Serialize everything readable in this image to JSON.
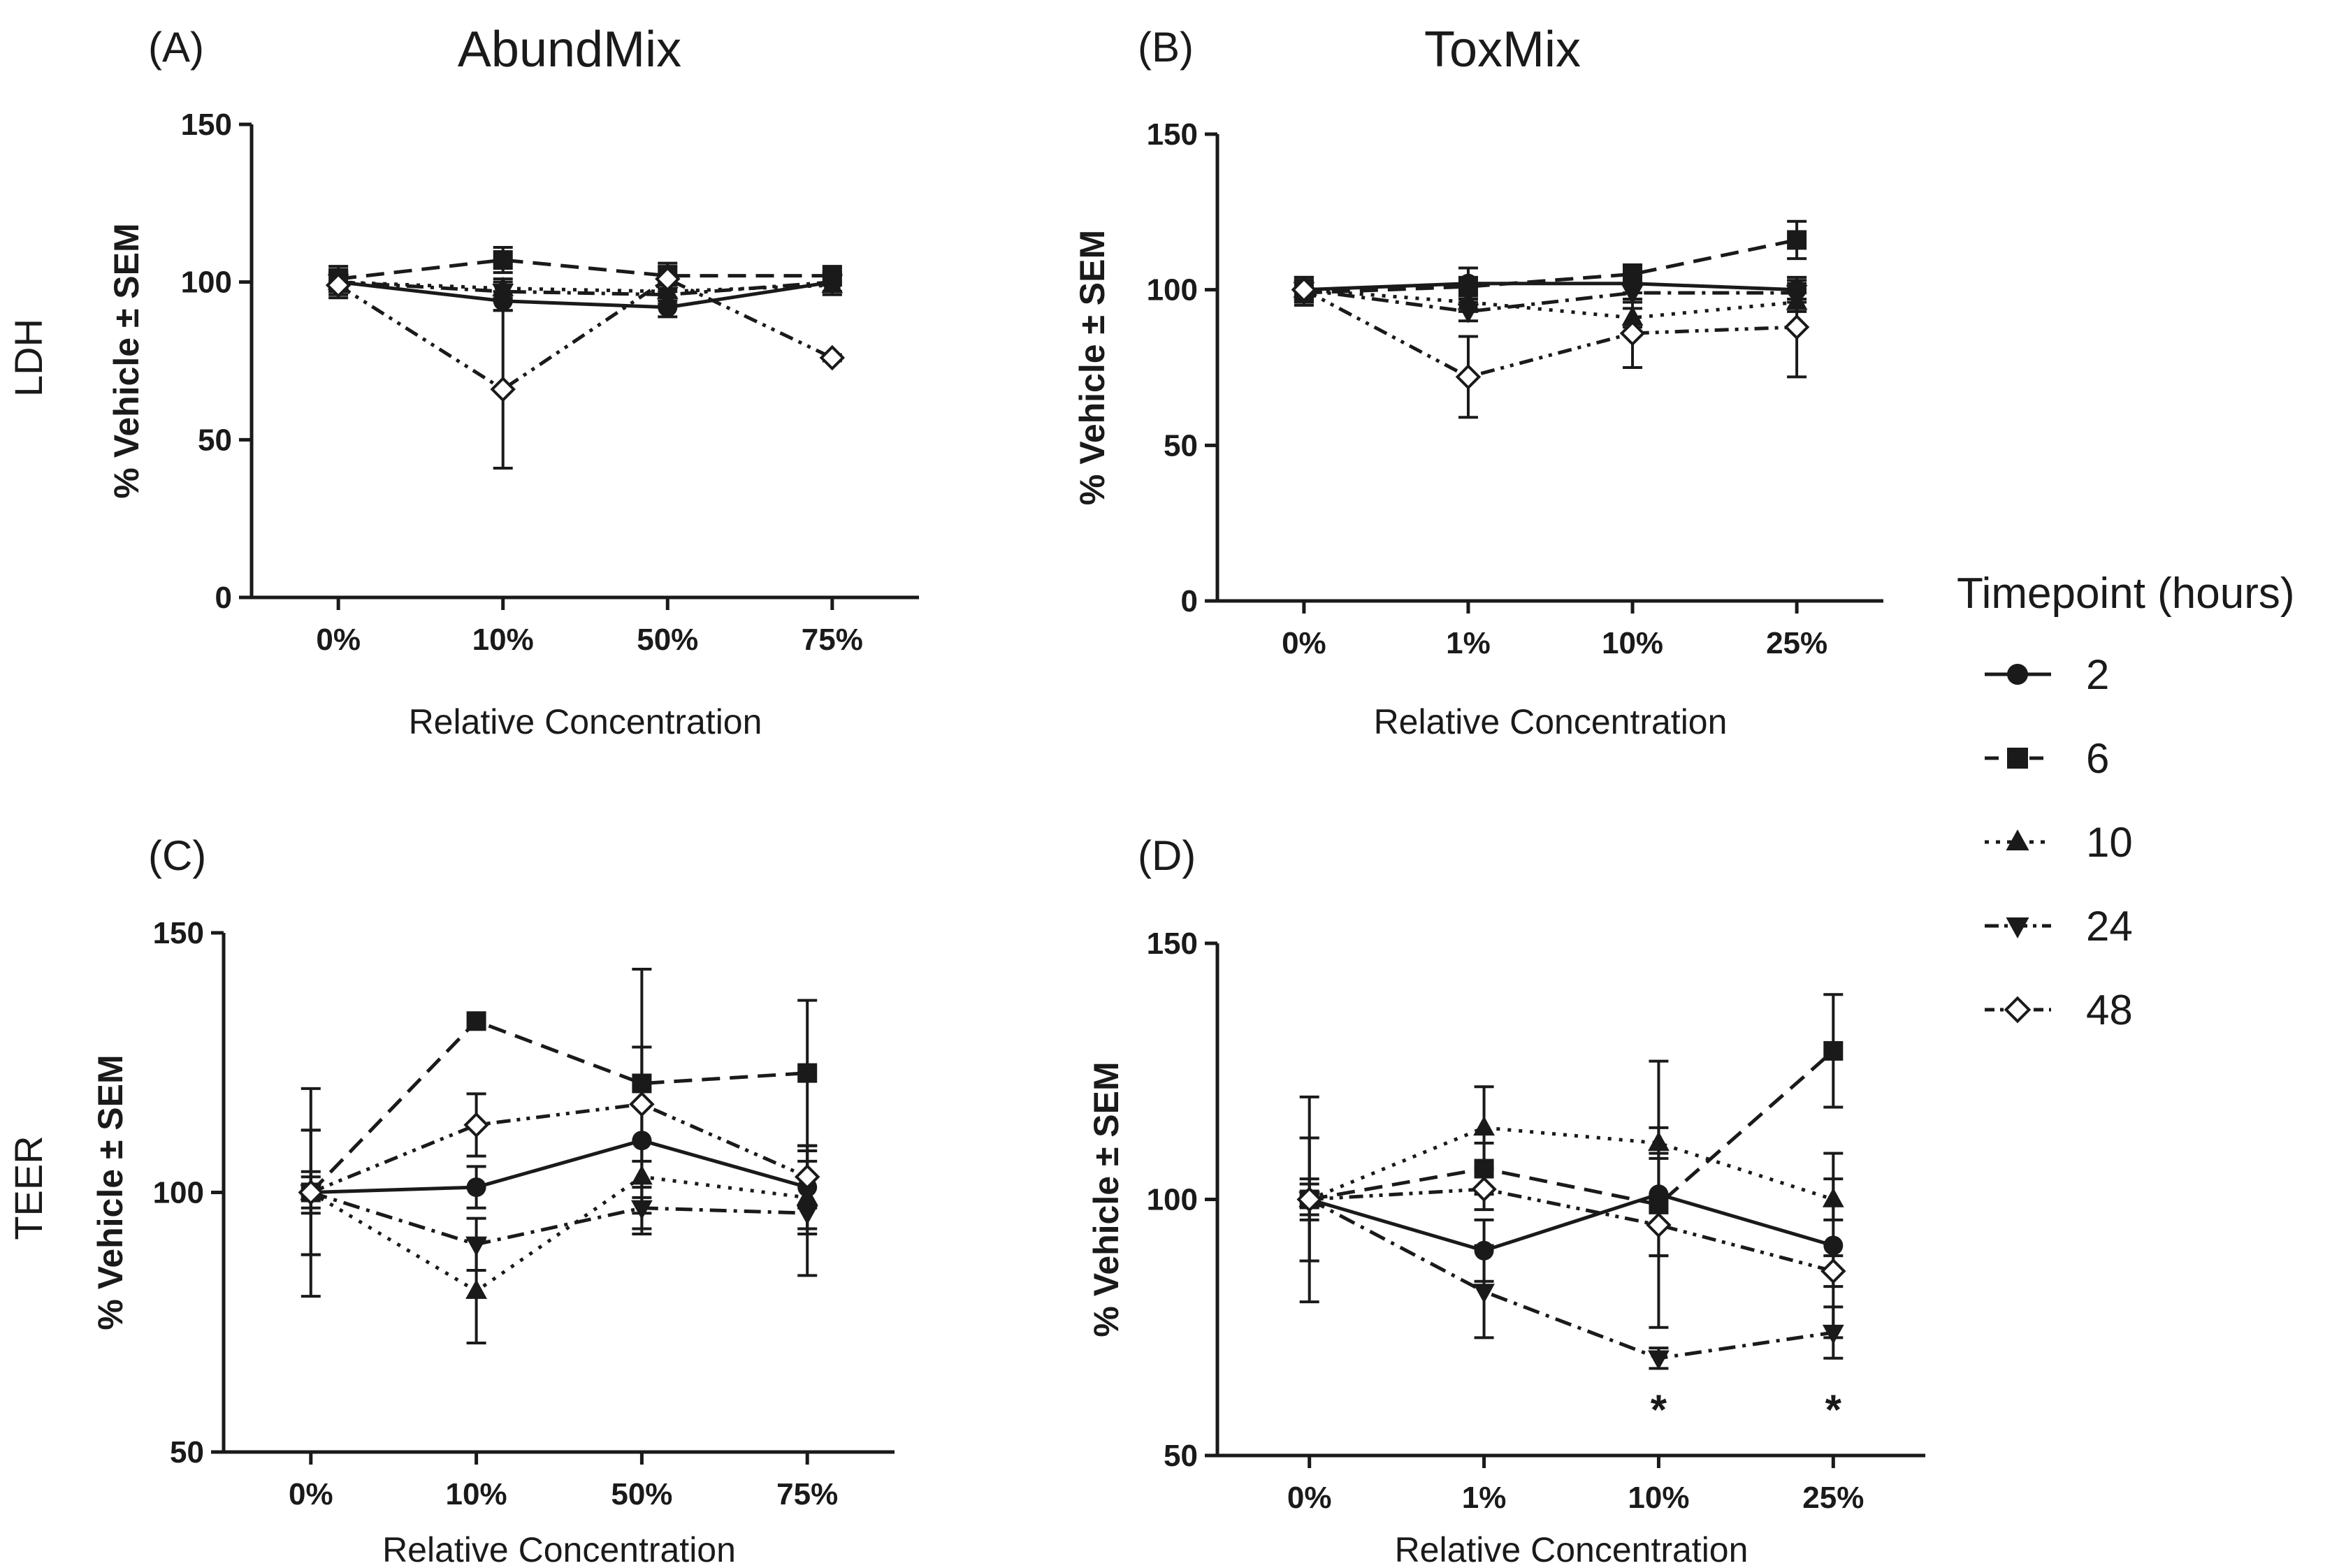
{
  "legend": {
    "title": "Timepoint (hours)",
    "items": [
      "2",
      "6",
      "10",
      "24",
      "48"
    ]
  },
  "row_labels": [
    "LDH",
    "TEER"
  ],
  "colors": {
    "ink": "#1a1a1a",
    "background": "#ffffff"
  },
  "chart_data": [
    {
      "type": "line",
      "panel": "(A)",
      "title": "AbundMix",
      "row": "LDH",
      "xlabel": "Relative Concentration",
      "ylabel": "% Vehicle ± SEM",
      "categories": [
        "0%",
        "10%",
        "50%",
        "75%"
      ],
      "ylim": [
        0,
        150
      ],
      "yticks": [
        0,
        50,
        100,
        150
      ],
      "grid": false,
      "series": [
        {
          "name": "2",
          "values": [
            100,
            94,
            92,
            100
          ],
          "err": [
            4,
            3,
            3,
            3
          ]
        },
        {
          "name": "6",
          "values": [
            101,
            107,
            102,
            102
          ],
          "err": [
            4,
            4,
            4,
            3
          ]
        },
        {
          "name": "10",
          "values": [
            100,
            98,
            97,
            99
          ],
          "err": [
            3,
            3,
            3,
            3
          ]
        },
        {
          "name": "24",
          "values": [
            100,
            97,
            96,
            100
          ],
          "err": [
            3,
            3,
            3,
            3
          ]
        },
        {
          "name": "48",
          "values": [
            99,
            66,
            101,
            76
          ],
          "err": [
            4,
            25,
            4,
            1
          ]
        }
      ],
      "annotations": []
    },
    {
      "type": "line",
      "panel": "(B)",
      "title": "ToxMix",
      "row": "LDH",
      "xlabel": "Relative Concentration",
      "ylabel": "% Vehicle ± SEM",
      "categories": [
        "0%",
        "1%",
        "10%",
        "25%"
      ],
      "ylim": [
        0,
        150
      ],
      "yticks": [
        0,
        50,
        100,
        150
      ],
      "grid": false,
      "series": [
        {
          "name": "2",
          "values": [
            100,
            102,
            102,
            100
          ],
          "err": [
            4,
            5,
            3,
            3
          ]
        },
        {
          "name": "6",
          "values": [
            99,
            101,
            105,
            116
          ],
          "err": [
            4,
            3,
            3,
            6
          ]
        },
        {
          "name": "10",
          "values": [
            100,
            96,
            91,
            96
          ],
          "err": [
            3,
            3,
            3,
            3
          ]
        },
        {
          "name": "24",
          "values": [
            100,
            93,
            99,
            99
          ],
          "err": [
            3,
            3,
            3,
            3
          ]
        },
        {
          "name": "48",
          "values": [
            100,
            72,
            86,
            88
          ],
          "err": [
            4,
            13,
            11,
            16
          ]
        }
      ],
      "annotations": []
    },
    {
      "type": "line",
      "panel": "(C)",
      "title": "",
      "row": "TEER",
      "xlabel": "Relative Concentration",
      "ylabel": "% Vehicle ± SEM",
      "categories": [
        "0%",
        "10%",
        "50%",
        "75%"
      ],
      "ylim": [
        50,
        150
      ],
      "yticks": [
        50,
        100,
        150
      ],
      "grid": false,
      "series": [
        {
          "name": "2",
          "values": [
            100,
            101,
            110,
            101
          ],
          "err": [
            20,
            4,
            18,
            8
          ]
        },
        {
          "name": "6",
          "values": [
            100,
            133,
            121,
            123
          ],
          "err": [
            4,
            0,
            22,
            14
          ]
        },
        {
          "name": "10",
          "values": [
            100,
            81,
            103,
            99
          ],
          "err": [
            12,
            10,
            7,
            7
          ]
        },
        {
          "name": "24",
          "values": [
            100,
            90,
            97,
            96
          ],
          "err": [
            12,
            5,
            4,
            12
          ]
        },
        {
          "name": "48",
          "values": [
            100,
            113,
            117,
            103
          ],
          "err": [
            3,
            6,
            11,
            6
          ]
        }
      ],
      "annotations": []
    },
    {
      "type": "line",
      "panel": "(D)",
      "title": "",
      "row": "TEER",
      "xlabel": "Relative Concentration",
      "ylabel": "% Vehicle ± SEM",
      "categories": [
        "0%",
        "1%",
        "10%",
        "25%"
      ],
      "ylim": [
        50,
        150
      ],
      "yticks": [
        50,
        100,
        150
      ],
      "grid": false,
      "series": [
        {
          "name": "2",
          "values": [
            100,
            90,
            101,
            91
          ],
          "err": [
            20,
            6,
            26,
            18
          ]
        },
        {
          "name": "6",
          "values": [
            100,
            106,
            99,
            129
          ],
          "err": [
            4,
            5,
            10,
            11
          ]
        },
        {
          "name": "10",
          "values": [
            100,
            114,
            111,
            100
          ],
          "err": [
            12,
            8,
            3,
            4
          ]
        },
        {
          "name": "24",
          "values": [
            100,
            82,
            69,
            74
          ],
          "err": [
            12,
            9,
            2,
            5
          ]
        },
        {
          "name": "48",
          "values": [
            100,
            102,
            95,
            86
          ],
          "err": [
            3,
            4,
            6,
            3
          ]
        }
      ],
      "annotations": [
        {
          "category": "10%",
          "text": "*"
        },
        {
          "category": "25%",
          "text": "*"
        }
      ]
    }
  ]
}
